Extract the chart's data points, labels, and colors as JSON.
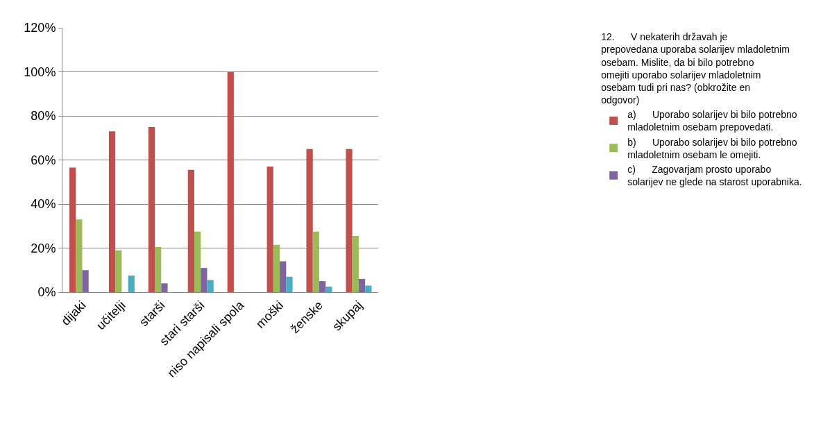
{
  "chart_data": {
    "type": "bar",
    "legend_title": "12.      V nekaterih državah je prepovedana uporaba solarijev mladoletnim osebam. Mislite, da bi bilo potrebno omejiti uporabo solarijev mladoletnim osebam tudi pri nas? (obkrožite en odgovor)",
    "categories": [
      "dijaki",
      "učitelji",
      "starši",
      "stari starši",
      "niso napisali spola",
      "moški",
      "ženske",
      "skupaj"
    ],
    "series": [
      {
        "name": "a)      Uporabo solarijev bi bilo potrebno mladoletnim osebam prepovedati.",
        "color": "#c0504d",
        "values": [
          56.5,
          73,
          75,
          55.5,
          100,
          57,
          65,
          65
        ]
      },
      {
        "name": "b)      Uporabo solarijev bi bilo potrebno mladoletnim osebam le omejiti.",
        "color": "#9bbb59",
        "values": [
          33,
          19,
          20.5,
          27.5,
          0,
          21.5,
          27.5,
          25.5
        ]
      },
      {
        "name": "c)      Zagovarjam prosto uporabo solarijev ne glede na starost uporabnika.",
        "color": "#8064a2",
        "values": [
          10,
          0,
          4,
          11,
          0,
          14,
          5,
          6
        ]
      },
      {
        "color": "#4bacc6",
        "values": [
          0,
          7.5,
          0,
          5.5,
          0,
          7,
          2.5,
          3
        ]
      }
    ],
    "ylim": [
      0,
      120
    ],
    "yticks": [
      {
        "value": 0,
        "label": "0%"
      },
      {
        "value": 20,
        "label": "20%"
      },
      {
        "value": 40,
        "label": "40%"
      },
      {
        "value": 60,
        "label": "60%"
      },
      {
        "value": 80,
        "label": "80%"
      },
      {
        "value": 100,
        "label": "100%"
      },
      {
        "value": 120,
        "label": "120%"
      }
    ],
    "grid": "y",
    "legend": "right"
  }
}
